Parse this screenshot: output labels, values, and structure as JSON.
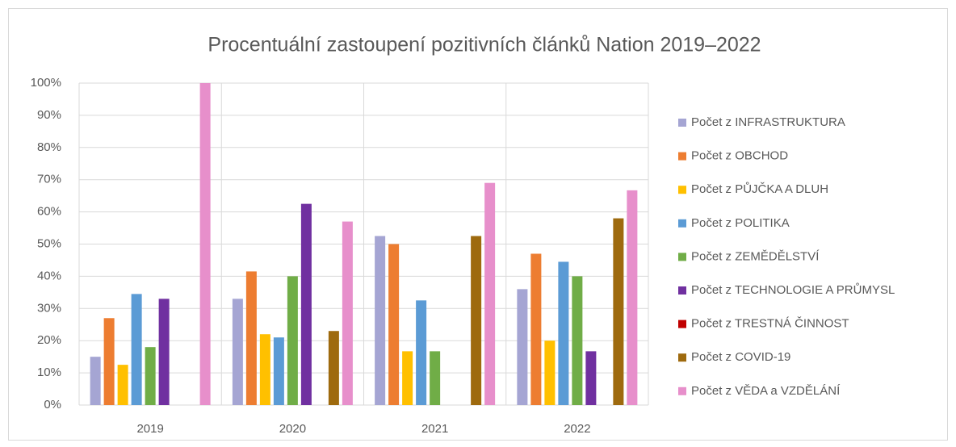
{
  "chart_data": {
    "type": "bar",
    "title": "Procentuální zastoupení pozitivních článků Nation 2019–2022",
    "categories": [
      "2019",
      "2020",
      "2021",
      "2022"
    ],
    "series": [
      {
        "name": "Počet z INFRASTRUKTURA",
        "color": "#a5a5d3",
        "values": [
          15,
          33,
          52.5,
          36
        ]
      },
      {
        "name": "Počet z OBCHOD",
        "color": "#ed7d31",
        "values": [
          27,
          41.5,
          50,
          47
        ]
      },
      {
        "name": "Počet z PŮJČKA A DLUH",
        "color": "#ffc000",
        "values": [
          12.5,
          22,
          16.7,
          20
        ]
      },
      {
        "name": "Počet z POLITIKA",
        "color": "#5b9bd5",
        "values": [
          34.5,
          21,
          32.5,
          44.5
        ]
      },
      {
        "name": "Počet z ZEMĚDĚLSTVÍ",
        "color": "#70ad47",
        "values": [
          18,
          40,
          16.7,
          40
        ]
      },
      {
        "name": "Počet z TECHNOLOGIE A PRŮMYSL",
        "color": "#7030a0",
        "values": [
          33,
          62.5,
          0,
          16.7
        ]
      },
      {
        "name": "Počet z TRESTNÁ ČINNOST",
        "color": "#c00000",
        "values": [
          0,
          0,
          0,
          0
        ]
      },
      {
        "name": "Počet z COVID-19",
        "color": "#9e6a0e",
        "values": [
          0,
          23,
          52.5,
          58
        ]
      },
      {
        "name": "Počet z VĚDA a VZDĚLÁNÍ",
        "color": "#e78fcb",
        "values": [
          100,
          57,
          69,
          66.7
        ]
      }
    ],
    "ylim": [
      0,
      100
    ],
    "yticks": [
      {
        "value": 0,
        "label": "0%"
      },
      {
        "value": 10,
        "label": "10%"
      },
      {
        "value": 20,
        "label": "20%"
      },
      {
        "value": 30,
        "label": "30%"
      },
      {
        "value": 40,
        "label": "40%"
      },
      {
        "value": 50,
        "label": "50%"
      },
      {
        "value": 60,
        "label": "60%"
      },
      {
        "value": 70,
        "label": "70%"
      },
      {
        "value": 80,
        "label": "80%"
      },
      {
        "value": 90,
        "label": "90%"
      },
      {
        "value": 100,
        "label": "100%"
      }
    ],
    "grid": true,
    "legend": "right"
  }
}
